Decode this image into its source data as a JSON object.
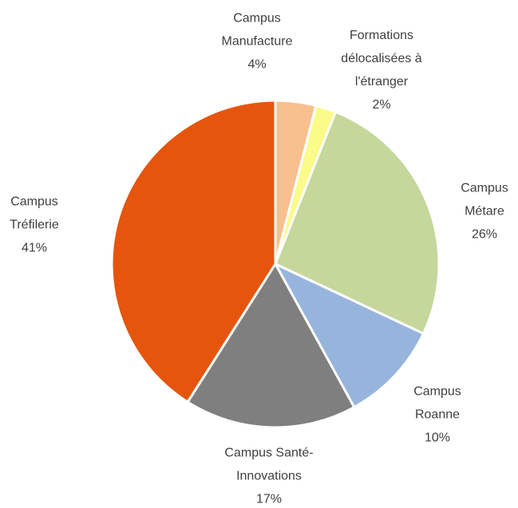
{
  "chart_data": {
    "type": "pie",
    "categories": [
      "Campus Manufacture",
      "Formations délocalisées à l'étranger",
      "Campus Métare",
      "Campus Roanne",
      "Campus Santé-Innovations",
      "Campus Tréfilerie"
    ],
    "values": [
      4,
      2,
      26,
      10,
      17,
      41
    ],
    "value_labels": [
      "4%",
      "2%",
      "26%",
      "10%",
      "17%",
      "41%"
    ],
    "colors": [
      "#f8c08f",
      "#fbfb8a",
      "#c5d79b",
      "#97b5dc",
      "#7f7f7f",
      "#e6550d"
    ]
  }
}
